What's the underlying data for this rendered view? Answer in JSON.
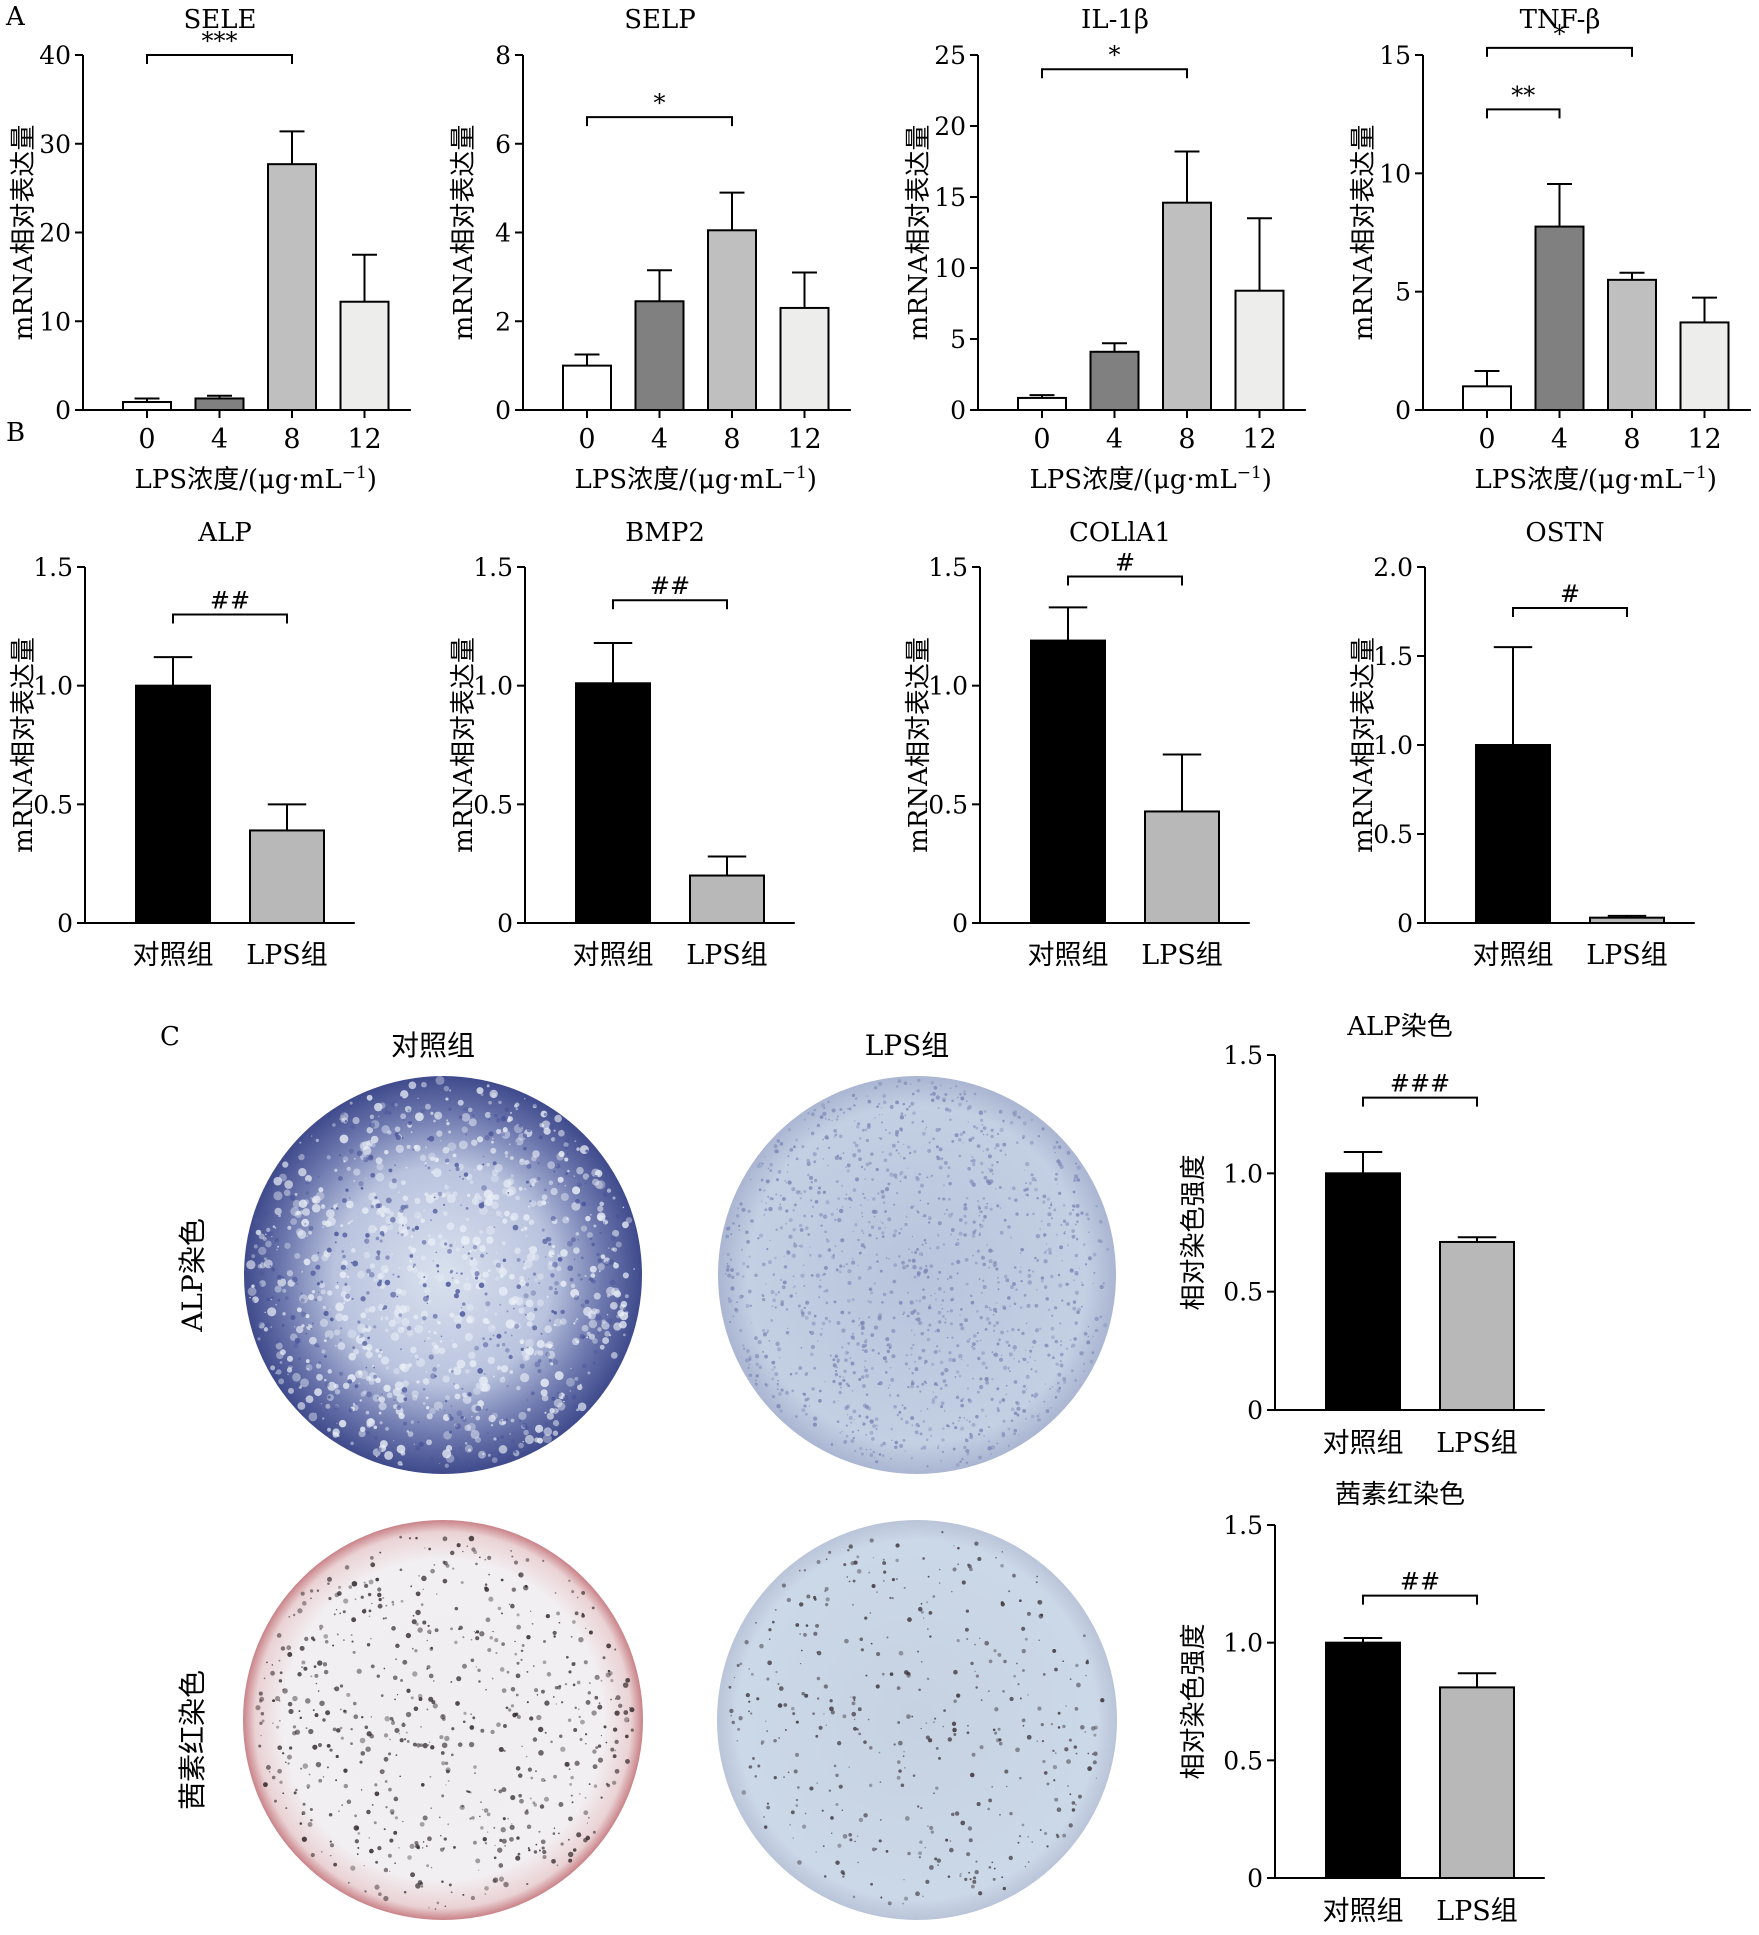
{
  "panels": {
    "a": "A",
    "b": "B",
    "c": "C"
  },
  "panel_c": {
    "columns": [
      "对照组",
      "LPS组"
    ],
    "rows": [
      "ALP染色",
      "茜素红染色"
    ]
  },
  "colors": {
    "c0": "#ffffff",
    "c4": "#808080",
    "c8": "#bfbfbf",
    "c12": "#ededeb",
    "control": "#000000",
    "lps": "#b8b8b8",
    "alp_stain": "#3f4a8c",
    "ars_stain": "#c98288",
    "plate_bg": "#c9d7e6"
  },
  "chart_data": [
    {
      "id": "sele",
      "type": "bar",
      "title": "SELE",
      "ylabel": "mRNA相对表达量",
      "xlabel": "LPS浓度/(μg·mL",
      "xlabel_sup": "−1",
      "xlabel_end": ")",
      "categories": [
        "0",
        "4",
        "8",
        "12"
      ],
      "values": [
        0.9,
        1.3,
        27.7,
        12.2
      ],
      "errors": [
        0.4,
        0.3,
        3.7,
        5.3
      ],
      "ylim": [
        0,
        40
      ],
      "yticks": [
        "0",
        "10",
        "20",
        "30",
        "40"
      ],
      "sig": [
        {
          "from": 0,
          "to": 2,
          "label": "***",
          "level": 40
        }
      ]
    },
    {
      "id": "selp",
      "type": "bar",
      "title": "SELP",
      "ylabel": "mRNA相对表达量",
      "xlabel": "LPS浓度/(μg·mL",
      "xlabel_sup": "−1",
      "xlabel_end": ")",
      "categories": [
        "0",
        "4",
        "8",
        "12"
      ],
      "values": [
        1.0,
        2.45,
        4.05,
        2.3
      ],
      "errors": [
        0.25,
        0.7,
        0.85,
        0.8
      ],
      "ylim": [
        0,
        8
      ],
      "yticks": [
        "0",
        "2",
        "4",
        "6",
        "8"
      ],
      "sig": [
        {
          "from": 0,
          "to": 2,
          "label": "*",
          "level": 6.6
        }
      ]
    },
    {
      "id": "il1b",
      "type": "bar",
      "title": "IL-1β",
      "ylabel": "mRNA相对表达量",
      "xlabel": "LPS浓度/(μg·mL",
      "xlabel_sup": "−1",
      "xlabel_end": ")",
      "categories": [
        "0",
        "4",
        "8",
        "12"
      ],
      "values": [
        0.85,
        4.1,
        14.6,
        8.4
      ],
      "errors": [
        0.2,
        0.6,
        3.6,
        5.1
      ],
      "ylim": [
        0,
        25
      ],
      "yticks": [
        "0",
        "5",
        "10",
        "15",
        "20",
        "25"
      ],
      "sig": [
        {
          "from": 0,
          "to": 2,
          "label": "*",
          "level": 24
        }
      ]
    },
    {
      "id": "tnfb",
      "type": "bar",
      "title": "TNF-β",
      "ylabel": "mRNA相对表达量",
      "xlabel": "LPS浓度/(μg·mL",
      "xlabel_sup": "−1",
      "xlabel_end": ")",
      "categories": [
        "0",
        "4",
        "8",
        "12"
      ],
      "values": [
        1.0,
        7.75,
        5.5,
        3.7
      ],
      "errors": [
        0.65,
        1.8,
        0.3,
        1.05
      ],
      "ylim": [
        0,
        15
      ],
      "yticks": [
        "0",
        "5",
        "10",
        "15"
      ],
      "sig": [
        {
          "from": 0,
          "to": 1,
          "label": "**",
          "level": 12.7
        },
        {
          "from": 0,
          "to": 2,
          "label": "*",
          "level": 15.3
        }
      ]
    },
    {
      "id": "alp",
      "type": "bar",
      "title": "ALP",
      "ylabel": "mRNA相对表达量",
      "categories": [
        "对照组",
        "LPS组"
      ],
      "values": [
        1.0,
        0.39
      ],
      "errors": [
        0.12,
        0.11
      ],
      "ylim": [
        0,
        1.5
      ],
      "yticks": [
        "0",
        "0.5",
        "1.0",
        "1.5"
      ],
      "sig": [
        {
          "from": 0,
          "to": 1,
          "label": "##",
          "level": 1.3
        }
      ]
    },
    {
      "id": "bmp2",
      "type": "bar",
      "title": "BMP2",
      "ylabel": "mRNA相对表达量",
      "categories": [
        "对照组",
        "LPS组"
      ],
      "values": [
        1.01,
        0.2
      ],
      "errors": [
        0.17,
        0.08
      ],
      "ylim": [
        0,
        1.5
      ],
      "yticks": [
        "0",
        "0.5",
        "1.0",
        "1.5"
      ],
      "sig": [
        {
          "from": 0,
          "to": 1,
          "label": "##",
          "level": 1.36
        }
      ]
    },
    {
      "id": "col1a1",
      "type": "bar",
      "title": "COLlA1",
      "ylabel": "mRNA相对表达量",
      "categories": [
        "对照组",
        "LPS组"
      ],
      "values": [
        1.19,
        0.47
      ],
      "errors": [
        0.14,
        0.24
      ],
      "ylim": [
        0,
        1.5
      ],
      "yticks": [
        "0",
        "0.5",
        "1.0",
        "1.5"
      ],
      "sig": [
        {
          "from": 0,
          "to": 1,
          "label": "#",
          "level": 1.46
        }
      ]
    },
    {
      "id": "ostn",
      "type": "bar",
      "title": "OSTN",
      "ylabel": "mRNA相对表达量",
      "categories": [
        "对照组",
        "LPS组"
      ],
      "values": [
        1.0,
        0.03
      ],
      "errors": [
        0.55,
        0.01
      ],
      "ylim": [
        0,
        2.0
      ],
      "yticks": [
        "0",
        "0.5",
        "1.0",
        "1.5",
        "2.0"
      ],
      "sig": [
        {
          "from": 0,
          "to": 1,
          "label": "#",
          "level": 1.77
        }
      ]
    },
    {
      "id": "alp_stain",
      "type": "bar",
      "title": "ALP染色",
      "ylabel": "相对染色强度",
      "categories": [
        "对照组",
        "LPS组"
      ],
      "values": [
        1.0,
        0.71
      ],
      "errors": [
        0.09,
        0.02
      ],
      "ylim": [
        0,
        1.5
      ],
      "yticks": [
        "0",
        "0.5",
        "1.0",
        "1.5"
      ],
      "sig": [
        {
          "from": 0,
          "to": 1,
          "label": "###",
          "level": 1.32
        }
      ]
    },
    {
      "id": "ars_stain",
      "type": "bar",
      "title": "茜素红染色",
      "ylabel": "相对染色强度",
      "categories": [
        "对照组",
        "LPS组"
      ],
      "values": [
        1.0,
        0.81
      ],
      "errors": [
        0.02,
        0.06
      ],
      "ylim": [
        0,
        1.5
      ],
      "yticks": [
        "0",
        "0.5",
        "1.0",
        "1.5"
      ],
      "sig": [
        {
          "from": 0,
          "to": 1,
          "label": "##",
          "level": 1.2
        }
      ]
    }
  ]
}
